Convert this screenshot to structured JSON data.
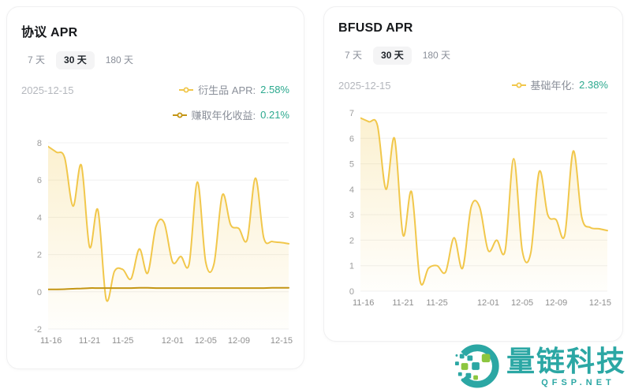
{
  "cards": [
    {
      "title": "协议 APR",
      "tabs": [
        {
          "label": "7 天",
          "selected": false
        },
        {
          "label": "30 天",
          "selected": true
        },
        {
          "label": "180 天",
          "selected": false
        }
      ],
      "date": "2025-12-15",
      "legends": [
        {
          "label": "衍生品 APR:",
          "value": "2.58%",
          "color": "#F1C74B"
        },
        {
          "label": "赚取年化收益:",
          "value": "0.21%",
          "color": "#C49514"
        }
      ]
    },
    {
      "title": "BFUSD APR",
      "tabs": [
        {
          "label": "7 天",
          "selected": false
        },
        {
          "label": "30 天",
          "selected": true
        },
        {
          "label": "180 天",
          "selected": false
        }
      ],
      "date": "2025-12-15",
      "legends": [
        {
          "label": "基础年化:",
          "value": "2.38%",
          "color": "#F1C74B"
        }
      ]
    }
  ],
  "chart_data": [
    {
      "type": "line",
      "title": "协议 APR",
      "x_labels": [
        "11-16",
        "11-21",
        "11-25",
        "12-01",
        "12-05",
        "12-09",
        "12-15"
      ],
      "x_label_days": [
        0,
        5,
        9,
        15,
        19,
        23,
        29
      ],
      "x_total_days": 29,
      "ylim": [
        -2,
        8
      ],
      "yticks": [
        8,
        6,
        4,
        2,
        0,
        -2
      ],
      "grid": true,
      "legend_position": "top-right",
      "series": [
        {
          "name": "衍生品 APR",
          "color": "#F1C74B",
          "area": true,
          "values": [
            7.8,
            7.5,
            7.2,
            4.6,
            6.8,
            2.4,
            4.4,
            -0.4,
            1.1,
            1.2,
            0.7,
            2.3,
            1.0,
            3.5,
            3.7,
            1.6,
            1.9,
            1.5,
            5.9,
            1.6,
            1.5,
            5.2,
            3.6,
            3.4,
            2.8,
            6.1,
            2.9,
            2.7,
            2.65,
            2.58
          ]
        },
        {
          "name": "赚取年化收益",
          "color": "#C49514",
          "area": false,
          "values": [
            0.13,
            0.13,
            0.14,
            0.16,
            0.18,
            0.2,
            0.2,
            0.2,
            0.2,
            0.2,
            0.2,
            0.21,
            0.21,
            0.2,
            0.2,
            0.2,
            0.2,
            0.2,
            0.2,
            0.2,
            0.2,
            0.2,
            0.2,
            0.2,
            0.2,
            0.2,
            0.2,
            0.21,
            0.21,
            0.21
          ]
        }
      ]
    },
    {
      "type": "line",
      "title": "BFUSD APR",
      "x_labels": [
        "11-16",
        "11-21",
        "11-25",
        "12-01",
        "12-05",
        "12-09",
        "12-15"
      ],
      "x_label_days": [
        0,
        5,
        9,
        15,
        19,
        23,
        29
      ],
      "x_total_days": 29,
      "ylim": [
        0,
        7
      ],
      "yticks": [
        7,
        6,
        5,
        4,
        3,
        2,
        1,
        0
      ],
      "grid": true,
      "legend_position": "top-right",
      "series": [
        {
          "name": "基础年化",
          "color": "#F1C74B",
          "area": true,
          "values": [
            6.8,
            6.65,
            6.5,
            4.0,
            6.0,
            2.2,
            3.9,
            0.4,
            0.9,
            1.0,
            0.75,
            2.1,
            0.9,
            3.3,
            3.3,
            1.6,
            2.0,
            1.6,
            5.2,
            1.6,
            1.5,
            4.7,
            3.0,
            2.8,
            2.2,
            5.5,
            2.9,
            2.5,
            2.45,
            2.38
          ]
        }
      ]
    }
  ],
  "logo": {
    "text": "量链科技",
    "subtext": "QFSP.NET",
    "teal": "#2BA7A4",
    "green": "#8CC63F"
  },
  "colors": {
    "accent_yellow": "#F1C74B",
    "accent_gold": "#C49514",
    "value_teal": "#2BA98E",
    "text_primary": "#17191C",
    "text_secondary": "#8A8F99",
    "grid": "#F0F0F0"
  }
}
